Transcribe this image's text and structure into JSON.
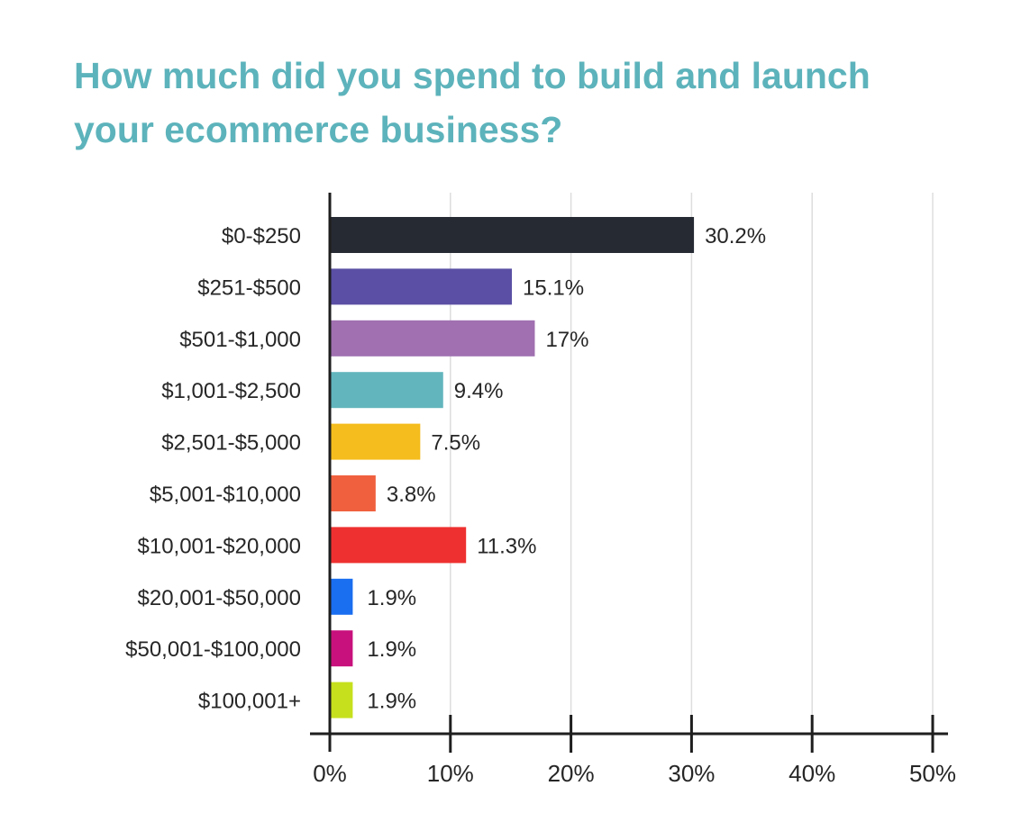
{
  "chart_data": {
    "type": "bar",
    "orientation": "horizontal",
    "title_lines": [
      "How much did you spend to build and launch",
      "your ecommerce business?"
    ],
    "categories": [
      "$0-$250",
      "$251-$500",
      "$501-$1,000",
      "$1,001-$2,500",
      "$2,501-$5,000",
      "$5,001-$10,000",
      "$10,001-$20,000",
      "$20,001-$50,000",
      "$50,001-$100,000",
      "$100,001+"
    ],
    "values": [
      30.2,
      15.1,
      17,
      9.4,
      7.5,
      3.8,
      11.3,
      1.9,
      1.9,
      1.9
    ],
    "value_labels": [
      "30.2%",
      "15.1%",
      "17%",
      "9.4%",
      "7.5%",
      "3.8%",
      "11.3%",
      "1.9%",
      "1.9%",
      "1.9%"
    ],
    "colors": [
      "#262a33",
      "#5a4fa4",
      "#a070b0",
      "#62b5bd",
      "#f5bd1d",
      "#f0603e",
      "#ee3030",
      "#1a6ef0",
      "#c8117c",
      "#c6e01d"
    ],
    "xlim": [
      0,
      50
    ],
    "xticks": [
      0,
      10,
      20,
      30,
      40,
      50
    ],
    "xtick_labels": [
      "0%",
      "10%",
      "20%",
      "30%",
      "40%",
      "50%"
    ],
    "xlabel": "",
    "ylabel": "",
    "grid": "vertical",
    "grid_color": "#dddddd",
    "title_color": "#5db3bb"
  }
}
